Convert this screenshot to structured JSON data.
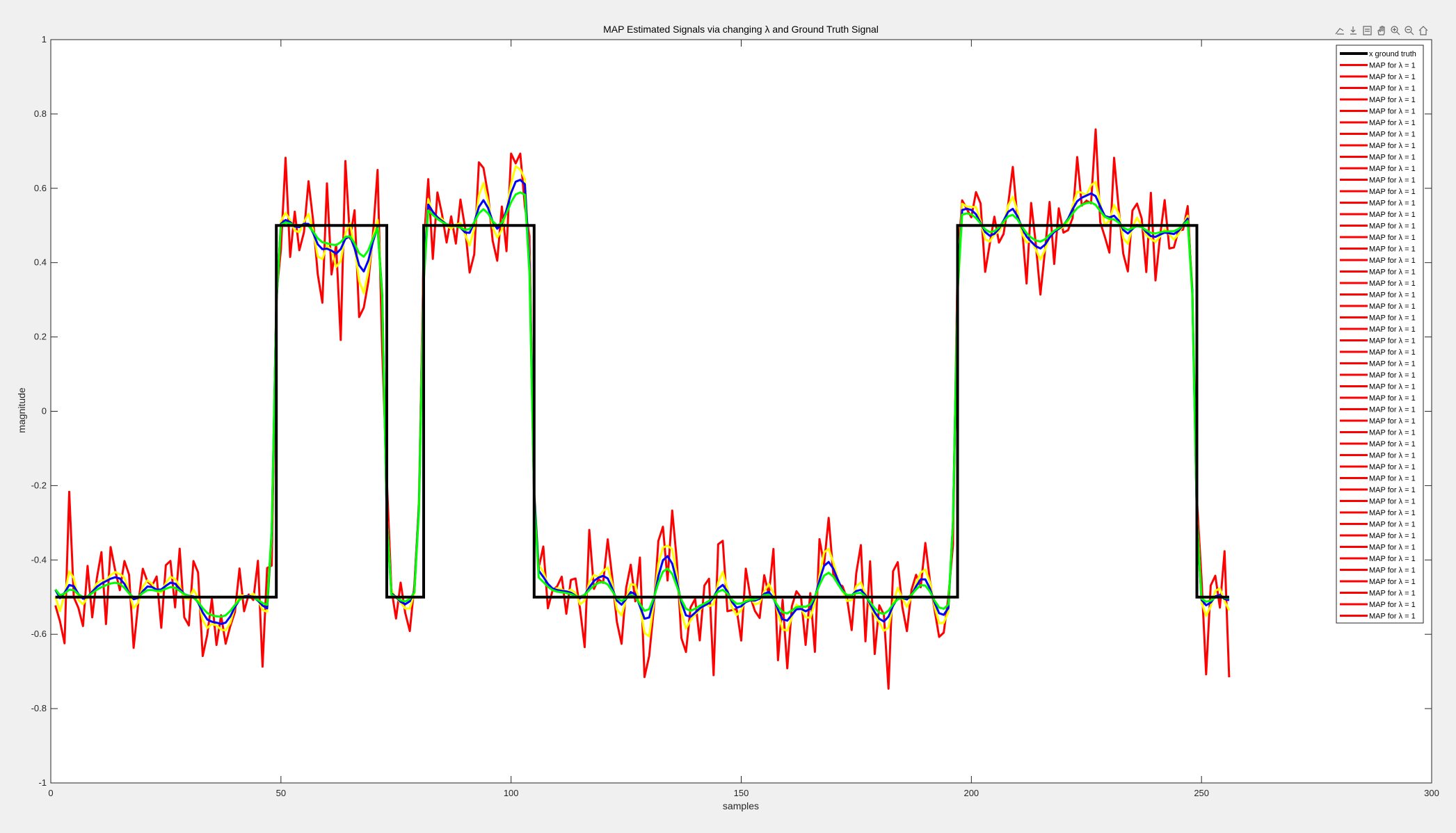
{
  "chart_data": {
    "type": "line",
    "title": "MAP Estimated Signals via changing λ and Ground Truth Signal",
    "xlabel": "samples",
    "ylabel": "magnitude",
    "xlim": [
      0,
      300
    ],
    "ylim": [
      -1,
      1
    ],
    "xticks": [
      0,
      50,
      100,
      150,
      200,
      250,
      300
    ],
    "yticks": [
      -1,
      -0.8,
      -0.6,
      -0.4,
      -0.2,
      0,
      0.2,
      0.4,
      0.6,
      0.8,
      1
    ],
    "ytick_labels": [
      "-1",
      "-0.8",
      "-0.6",
      "-0.4",
      "-0.2",
      "0",
      "0.2",
      "0.4",
      "0.6",
      "0.8",
      "1"
    ],
    "grid": false,
    "legend_position": "top-right",
    "n_samples": 256,
    "ground_truth": {
      "name": "x ground truth",
      "color": "#000000",
      "segments": [
        {
          "x_start": 1,
          "x_end": 48,
          "value": -0.5
        },
        {
          "x_start": 49,
          "x_end": 72,
          "value": 0.5
        },
        {
          "x_start": 73,
          "x_end": 80,
          "value": -0.5
        },
        {
          "x_start": 81,
          "x_end": 104,
          "value": 0.5
        },
        {
          "x_start": 105,
          "x_end": 196,
          "value": -0.5
        },
        {
          "x_start": 197,
          "x_end": 248,
          "value": 0.5
        },
        {
          "x_start": 249,
          "x_end": 256,
          "value": -0.5
        }
      ]
    },
    "estimate_series": [
      {
        "color": "#ff0000",
        "noise_amplitude": 0.14,
        "smoothing": 0.0
      },
      {
        "color": "#ffff00",
        "noise_amplitude": 0.09,
        "smoothing": 0.35
      },
      {
        "color": "#0000ff",
        "noise_amplitude": 0.05,
        "smoothing": 0.6
      },
      {
        "color": "#00ff00",
        "noise_amplitude": 0.03,
        "smoothing": 0.8
      }
    ],
    "legend": {
      "entries": [
        {
          "label": "x ground truth",
          "color": "#000000"
        },
        {
          "label": "MAP for λ = 1",
          "color": "#ff0000"
        },
        {
          "label": "MAP for λ = 1",
          "color": "#ff0000"
        },
        {
          "label": "MAP for λ = 1",
          "color": "#ff0000"
        },
        {
          "label": "MAP for λ = 1",
          "color": "#ff0000"
        },
        {
          "label": "MAP for λ = 1",
          "color": "#ff0000"
        },
        {
          "label": "MAP for λ = 1",
          "color": "#ff0000"
        },
        {
          "label": "MAP for λ = 1",
          "color": "#ff0000"
        },
        {
          "label": "MAP for λ = 1",
          "color": "#ff0000"
        },
        {
          "label": "MAP for λ = 1",
          "color": "#ff0000"
        },
        {
          "label": "MAP for λ = 1",
          "color": "#ff0000"
        },
        {
          "label": "MAP for λ = 1",
          "color": "#ff0000"
        },
        {
          "label": "MAP for λ = 1",
          "color": "#ff0000"
        },
        {
          "label": "MAP for λ = 1",
          "color": "#ff0000"
        },
        {
          "label": "MAP for λ = 1",
          "color": "#ff0000"
        },
        {
          "label": "MAP for λ = 1",
          "color": "#ff0000"
        },
        {
          "label": "MAP for λ = 1",
          "color": "#ff0000"
        },
        {
          "label": "MAP for λ = 1",
          "color": "#ff0000"
        },
        {
          "label": "MAP for λ = 1",
          "color": "#ff0000"
        },
        {
          "label": "MAP for λ = 1",
          "color": "#ff0000"
        },
        {
          "label": "MAP for λ = 1",
          "color": "#ff0000"
        },
        {
          "label": "MAP for λ = 1",
          "color": "#ff0000"
        },
        {
          "label": "MAP for λ = 1",
          "color": "#ff0000"
        },
        {
          "label": "MAP for λ = 1",
          "color": "#ff0000"
        },
        {
          "label": "MAP for λ = 1",
          "color": "#ff0000"
        },
        {
          "label": "MAP for λ = 1",
          "color": "#ff0000"
        },
        {
          "label": "MAP for λ = 1",
          "color": "#ff0000"
        },
        {
          "label": "MAP for λ = 1",
          "color": "#ff0000"
        },
        {
          "label": "MAP for λ = 1",
          "color": "#ff0000"
        },
        {
          "label": "MAP for λ = 1",
          "color": "#ff0000"
        },
        {
          "label": "MAP for λ = 1",
          "color": "#ff0000"
        },
        {
          "label": "MAP for λ = 1",
          "color": "#ff0000"
        },
        {
          "label": "MAP for λ = 1",
          "color": "#ff0000"
        },
        {
          "label": "MAP for λ = 1",
          "color": "#ff0000"
        },
        {
          "label": "MAP for λ = 1",
          "color": "#ff0000"
        },
        {
          "label": "MAP for λ = 1",
          "color": "#ff0000"
        },
        {
          "label": "MAP for λ = 1",
          "color": "#ff0000"
        },
        {
          "label": "MAP for λ = 1",
          "color": "#ff0000"
        },
        {
          "label": "MAP for λ = 1",
          "color": "#ff0000"
        },
        {
          "label": "MAP for λ = 1",
          "color": "#ff0000"
        },
        {
          "label": "MAP for λ = 1",
          "color": "#ff0000"
        },
        {
          "label": "MAP for λ = 1",
          "color": "#ff0000"
        },
        {
          "label": "MAP for λ = 1",
          "color": "#ff0000"
        },
        {
          "label": "MAP for λ = 1",
          "color": "#ff0000"
        },
        {
          "label": "MAP for λ = 1",
          "color": "#ff0000"
        },
        {
          "label": "MAP for λ = 1",
          "color": "#ff0000"
        },
        {
          "label": "MAP for λ = 1",
          "color": "#ff0000"
        },
        {
          "label": "MAP for λ = 1",
          "color": "#ff0000"
        },
        {
          "label": "MAP for λ = 1",
          "color": "#ff0000"
        },
        {
          "label": "MAP for λ = 1",
          "color": "#ff0000"
        }
      ]
    }
  },
  "toolbar": {
    "icons": [
      "brush-icon",
      "datatip-icon",
      "legend-edit-icon",
      "pan-hand-icon",
      "zoom-in-icon",
      "zoom-out-icon",
      "home-icon"
    ]
  }
}
